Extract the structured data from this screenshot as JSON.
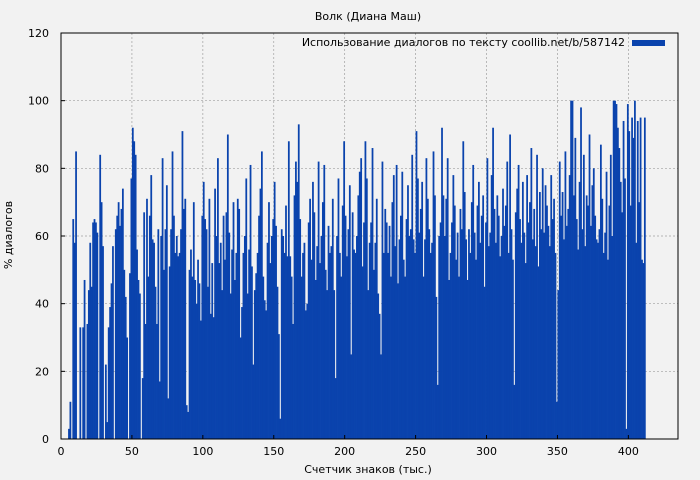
{
  "chart_data": {
    "type": "bar",
    "title": "Волк (Диана Маш)",
    "xlabel": "Счетчик знаков (тыс.)",
    "ylabel": "% диалогов",
    "xlim": [
      0,
      435
    ],
    "ylim": [
      0,
      120
    ],
    "x_ticks": [
      0,
      50,
      100,
      150,
      200,
      250,
      300,
      350,
      400
    ],
    "y_ticks": [
      0,
      20,
      40,
      60,
      80,
      100,
      120
    ],
    "grid": true,
    "legend_position": "top-right",
    "series": [
      {
        "name": "Использование диалогов по тексту coollib.net/b/587142",
        "color": "#0a43ad",
        "bin_width": 1,
        "x_start": 0,
        "values": [
          0,
          0,
          0,
          0,
          0,
          3,
          11,
          0,
          65,
          58,
          85,
          0,
          0,
          33,
          0,
          33,
          47,
          0,
          34,
          44,
          58,
          45,
          64,
          65,
          64,
          61,
          0,
          84,
          70,
          57,
          0,
          22,
          5,
          33,
          39,
          46,
          57,
          0,
          62,
          66,
          70,
          63,
          68,
          74,
          50,
          42,
          30,
          0,
          49,
          77,
          92,
          88,
          84,
          56,
          47,
          43,
          0,
          18,
          67,
          34,
          71,
          48,
          66,
          78,
          59,
          58,
          45,
          34,
          62,
          17,
          60,
          83,
          50,
          62,
          75,
          12,
          51,
          62,
          85,
          66,
          55,
          60,
          54,
          55,
          62,
          91,
          68,
          71,
          10,
          8,
          50,
          56,
          48,
          70,
          47,
          40,
          53,
          46,
          35,
          66,
          76,
          65,
          62,
          45,
          71,
          37,
          52,
          36,
          74,
          60,
          83,
          52,
          58,
          44,
          66,
          53,
          67,
          90,
          61,
          43,
          56,
          70,
          47,
          55,
          71,
          68,
          30,
          39,
          55,
          60,
          77,
          43,
          56,
          81,
          51,
          22,
          44,
          49,
          55,
          66,
          74,
          85,
          48,
          41,
          38,
          58,
          70,
          52,
          60,
          65,
          76,
          63,
          45,
          31,
          6,
          62,
          60,
          55,
          69,
          54,
          88,
          54,
          48,
          34,
          72,
          82,
          76,
          93,
          65,
          48,
          55,
          58,
          38,
          40,
          64,
          71,
          53,
          76,
          67,
          47,
          57,
          82,
          52,
          60,
          70,
          81,
          50,
          44,
          63,
          55,
          57,
          71,
          44,
          18,
          60,
          77,
          55,
          48,
          69,
          88,
          66,
          54,
          62,
          75,
          25,
          67,
          56,
          55,
          60,
          72,
          79,
          83,
          51,
          64,
          88,
          77,
          44,
          58,
          64,
          86,
          50,
          58,
          71,
          43,
          37,
          25,
          82,
          55,
          68,
          64,
          55,
          63,
          48,
          70,
          78,
          57,
          81,
          46,
          59,
          66,
          79,
          53,
          48,
          65,
          75,
          60,
          62,
          84,
          59,
          55,
          91,
          77,
          61,
          68,
          76,
          48,
          59,
          83,
          71,
          62,
          55,
          58,
          85,
          72,
          42,
          16,
          60,
          64,
          92,
          72,
          60,
          71,
          83,
          47,
          55,
          64,
          78,
          69,
          53,
          61,
          48,
          68,
          62,
          88,
          73,
          59,
          47,
          62,
          55,
          70,
          81,
          61,
          53,
          69,
          76,
          58,
          66,
          72,
          45,
          64,
          83,
          57,
          61,
          78,
          92,
          68,
          58,
          72,
          66,
          54,
          60,
          74,
          63,
          69,
          82,
          55,
          90,
          62,
          53,
          16,
          67,
          74,
          81,
          65,
          58,
          76,
          61,
          52,
          78,
          64,
          70,
          86,
          59,
          68,
          57,
          84,
          51,
          73,
          62,
          80,
          61,
          75,
          69,
          63,
          57,
          78,
          65,
          71,
          55,
          11,
          44,
          82,
          66,
          73,
          59,
          85,
          63,
          68,
          78,
          100,
          100,
          72,
          89,
          65,
          56,
          76,
          98,
          62,
          84,
          57,
          72,
          69,
          90,
          63,
          75,
          80,
          66,
          59,
          58,
          62,
          87,
          71,
          55,
          61,
          79,
          53,
          69,
          84,
          60,
          100,
          100,
          99,
          92,
          86,
          76,
          67,
          94,
          77,
          3,
          99,
          91,
          69,
          95,
          89,
          100,
          58,
          94,
          70,
          95,
          53,
          52,
          95
        ]
      }
    ]
  }
}
